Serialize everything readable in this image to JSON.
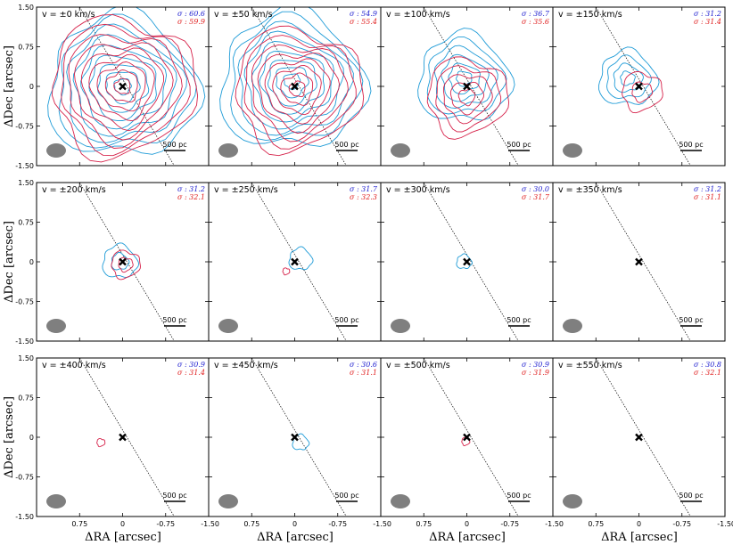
{
  "chart_data": {
    "type": "contour-grid",
    "title": "",
    "xlabel": "ΔRA [arcsec]",
    "ylabel": "ΔDec [arcsec]",
    "xlim": [
      1.5,
      -1.5
    ],
    "ylim": [
      -1.5,
      1.5
    ],
    "xticks": [
      "0.75",
      "0",
      "-0.75",
      "-1.50"
    ],
    "yticks": [
      "1.50",
      "0.75",
      "0",
      "-0.75",
      "-1.50"
    ],
    "scale_bar_label": "500 pc",
    "sigma_prefix": "σ : ",
    "series_colors": {
      "blue": "#1e9bd7",
      "red": "#d6224a"
    },
    "panels": [
      {
        "velocity": "v = ±0 km/s",
        "sigma_blue": "60.6",
        "sigma_red": "59.9",
        "blue_rmax": 1.3,
        "red_rmax": 1.25,
        "blue_dx": 0.0,
        "blue_dy": 0.0,
        "red_dx": 0.0,
        "red_dy": 0.0
      },
      {
        "velocity": "v = ±50 km/s",
        "sigma_blue": "54.9",
        "sigma_red": "55.4",
        "blue_rmax": 1.25,
        "red_rmax": 1.1,
        "blue_dx": 0.05,
        "blue_dy": 0.1,
        "red_dx": -0.05,
        "red_dy": -0.05
      },
      {
        "velocity": "v = ±100 km/s",
        "sigma_blue": "36.7",
        "sigma_red": "35.6",
        "blue_rmax": 0.8,
        "red_rmax": 0.7,
        "blue_dx": 0.05,
        "blue_dy": 0.15,
        "red_dx": 0.0,
        "red_dy": -0.2
      },
      {
        "velocity": "v = ±150 km/s",
        "sigma_blue": "31.2",
        "sigma_red": "31.4",
        "blue_rmax": 0.5,
        "red_rmax": 0.35,
        "blue_dx": 0.2,
        "blue_dy": 0.15,
        "red_dx": -0.05,
        "red_dy": -0.1
      },
      {
        "velocity": "v = ±200 km/s",
        "sigma_blue": "31.2",
        "sigma_red": "32.1",
        "blue_rmax": 0.3,
        "red_rmax": 0.25,
        "blue_dx": 0.05,
        "blue_dy": 0.0,
        "red_dx": -0.05,
        "red_dy": -0.05
      },
      {
        "velocity": "v = ±250 km/s",
        "sigma_blue": "31.7",
        "sigma_red": "32.3",
        "blue_rmax": 0.2,
        "red_rmax": 0.06,
        "blue_dx": -0.1,
        "blue_dy": 0.05,
        "red_dx": 0.15,
        "red_dy": -0.18
      },
      {
        "velocity": "v = ±300 km/s",
        "sigma_blue": "30.0",
        "sigma_red": "31.7",
        "blue_rmax": 0.13,
        "red_rmax": 0.0,
        "blue_dx": 0.05,
        "blue_dy": 0.0,
        "red_dx": 0.0,
        "red_dy": 0.0
      },
      {
        "velocity": "v = ±350 km/s",
        "sigma_blue": "31.2",
        "sigma_red": "31.1",
        "blue_rmax": 0.0,
        "red_rmax": 0.0,
        "blue_dx": 0.0,
        "blue_dy": 0.0,
        "red_dx": 0.0,
        "red_dy": 0.0
      },
      {
        "velocity": "v = ±400 km/s",
        "sigma_blue": "30.9",
        "sigma_red": "31.4",
        "blue_rmax": 0.0,
        "red_rmax": 0.07,
        "blue_dx": 0.0,
        "blue_dy": 0.0,
        "red_dx": 0.38,
        "red_dy": -0.1
      },
      {
        "velocity": "v = ±450 km/s",
        "sigma_blue": "30.6",
        "sigma_red": "31.1",
        "blue_rmax": 0.14,
        "red_rmax": 0.0,
        "blue_dx": -0.1,
        "blue_dy": -0.1,
        "red_dx": 0.0,
        "red_dy": 0.0
      },
      {
        "velocity": "v = ±500 km/s",
        "sigma_blue": "30.9",
        "sigma_red": "31.9",
        "blue_rmax": 0.0,
        "red_rmax": 0.07,
        "blue_dx": 0.0,
        "blue_dy": 0.0,
        "red_dx": 0.02,
        "red_dy": -0.08
      },
      {
        "velocity": "v = ±550 km/s",
        "sigma_blue": "30.8",
        "sigma_red": "32.1",
        "blue_rmax": 0.0,
        "red_rmax": 0.0,
        "blue_dx": 0.0,
        "blue_dy": 0.0,
        "red_dx": 0.0,
        "red_dy": 0.0
      }
    ]
  }
}
